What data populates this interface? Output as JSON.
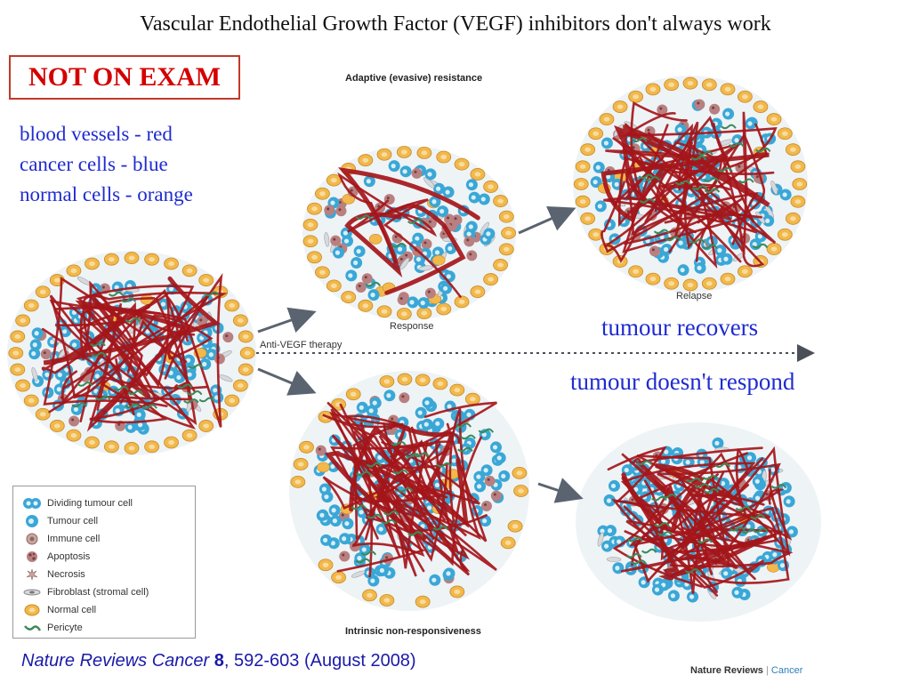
{
  "title": "Vascular Endothelial Growth Factor (VEGF) inhibitors don't always work",
  "not_on_exam": "NOT ON EXAM",
  "key": {
    "line1": "blood vessels - red",
    "line2": "cancer cells - blue",
    "line3": "normal cells - orange"
  },
  "diagram": {
    "adaptive_label": "Adaptive (evasive) resistance",
    "response_label": "Response",
    "relapse_label": "Relapse",
    "therapy_label": "Anti-VEGF therapy",
    "intrinsic_label": "Intrinsic non-responsiveness"
  },
  "outcomes": {
    "recovers": "tumour recovers",
    "no_response": "tumour doesn't respond"
  },
  "legend": [
    {
      "label": "Dividing tumour cell",
      "icon": "dividing-cell"
    },
    {
      "label": "Tumour cell",
      "icon": "tumour-cell"
    },
    {
      "label": "Immune cell",
      "icon": "immune-cell"
    },
    {
      "label": "Apoptosis",
      "icon": "apoptosis"
    },
    {
      "label": "Necrosis",
      "icon": "necrosis"
    },
    {
      "label": "Fibroblast (stromal cell)",
      "icon": "fibroblast"
    },
    {
      "label": "Normal cell",
      "icon": "normal-cell"
    },
    {
      "label": "Pericyte",
      "icon": "pericyte"
    }
  ],
  "citation": {
    "journal": "Nature Reviews Cancer",
    "volume": "8",
    "rest": ", 592-603 (August 2008)"
  },
  "brand": {
    "name": "Nature Reviews",
    "sep": " | ",
    "section": "Cancer"
  },
  "colors": {
    "vessel_red": "#a4161a",
    "tumour_blue": "#3aa7d6",
    "normal_orange": "#f2b84b",
    "key_text_blue": "#1f2bd0",
    "not_exam_red": "#d40000"
  }
}
